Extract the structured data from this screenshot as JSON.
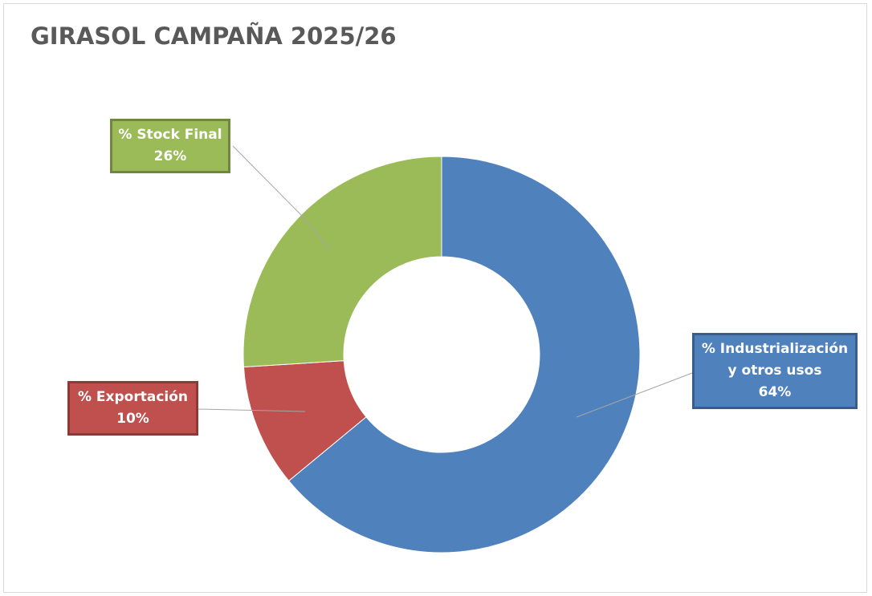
{
  "chart_data": {
    "type": "pie",
    "donut": true,
    "title": "GIRASOL CAMPAÑA 2025/26",
    "categories": [
      "% Industrialización y otros usos",
      "% Exportación",
      "% Stock Final"
    ],
    "values": [
      64,
      10,
      26
    ],
    "value_labels": [
      "64%",
      "10%",
      "26%"
    ],
    "colors": [
      "#4f81bd",
      "#c0504d",
      "#9bbb59"
    ]
  }
}
